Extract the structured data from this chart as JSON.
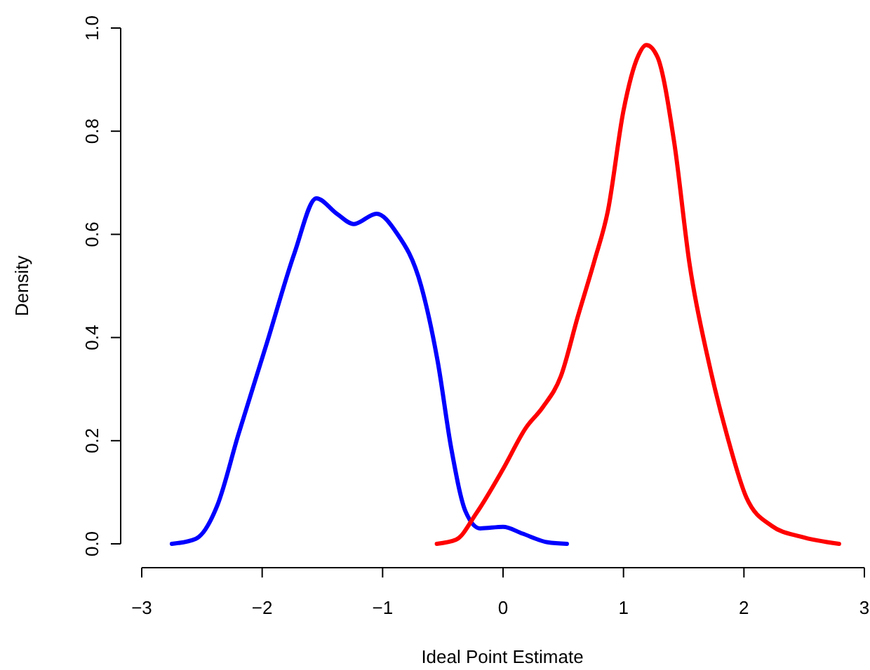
{
  "chart_data": {
    "type": "line",
    "xlabel": "Ideal Point Estimate",
    "ylabel": "Density",
    "xlim": [
      -3,
      3
    ],
    "ylim": [
      0,
      1
    ],
    "xticks": [
      {
        "value": -3,
        "label": "−3"
      },
      {
        "value": -2,
        "label": "−2"
      },
      {
        "value": -1,
        "label": "−1"
      },
      0,
      1,
      2,
      3
    ],
    "yticks": [
      {
        "value": 0,
        "label": "0.0"
      },
      0.2,
      0.4,
      0.6,
      0.8,
      {
        "value": 1,
        "label": "1.0"
      }
    ],
    "grid": false,
    "marker": "none",
    "line_style": "solid",
    "series": [
      {
        "color": "#0000ff",
        "x": [
          -2.75,
          -2.55,
          -2.37,
          -2.2,
          -1.96,
          -1.73,
          -1.55,
          -1.38,
          -1.24,
          -1.05,
          -0.89,
          -0.68,
          -0.54,
          -0.43,
          -0.31,
          -0.19,
          0.0,
          0.16,
          0.37,
          0.53
        ],
        "values": [
          0,
          0.01,
          0.076,
          0.21,
          0.39,
          0.565,
          0.67,
          0.64,
          0.62,
          0.64,
          0.605,
          0.5,
          0.35,
          0.185,
          0.062,
          0.03,
          0.033,
          0.02,
          0.003,
          0
        ]
      },
      {
        "color": "#ff0000",
        "x": [
          -0.55,
          -0.39,
          -0.22,
          0,
          0.19,
          0.33,
          0.48,
          0.62,
          0.76,
          0.87,
          1.0,
          1.12,
          1.19,
          1.28,
          1.42,
          1.55,
          1.71,
          1.86,
          2.02,
          2.23,
          2.47,
          2.79
        ],
        "values": [
          0,
          0.008,
          0.06,
          0.145,
          0.225,
          0.265,
          0.325,
          0.44,
          0.55,
          0.645,
          0.84,
          0.945,
          0.967,
          0.945,
          0.78,
          0.54,
          0.35,
          0.21,
          0.09,
          0.035,
          0.014,
          0
        ]
      }
    ]
  }
}
